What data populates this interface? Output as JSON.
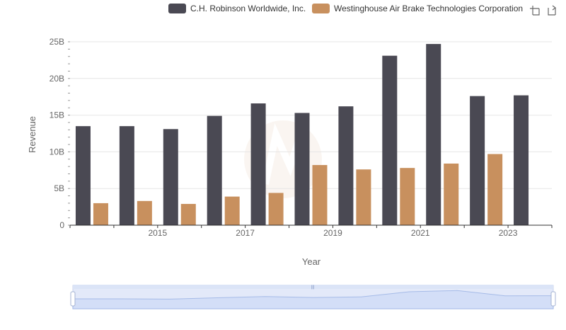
{
  "colors": {
    "series_a": "#4a4953",
    "series_b": "#c8905e",
    "grid": "#e6e6e6",
    "axis": "#333333",
    "zoom_fill": "#dbe4f7",
    "zoom_border": "#c9d3ea",
    "zoom_line": "#95aee0"
  },
  "toolbar": {
    "zoom_icon": "zoom-select-icon",
    "restore_icon": "restore-icon"
  },
  "chart_data": {
    "type": "bar",
    "title": "",
    "xlabel": "Year",
    "ylabel": "Revenue",
    "legend_position": "top-right",
    "grid": true,
    "x": [
      2014,
      2015,
      2016,
      2017,
      2018,
      2019,
      2020,
      2021,
      2022,
      2023,
      2024
    ],
    "x_tick_labels": [
      "2015",
      "2017",
      "2019",
      "2021",
      "2023"
    ],
    "x_tick_values": [
      2015,
      2017,
      2019,
      2021,
      2023
    ],
    "y_tick_labels": [
      "0",
      "5B",
      "10B",
      "15B",
      "20B",
      "25B"
    ],
    "y_tick_values": [
      0,
      5,
      10,
      15,
      20,
      25
    ],
    "ylim": [
      0,
      25
    ],
    "y_unit": "B",
    "series": [
      {
        "name": "C.H. Robinson Worldwide, Inc.",
        "values": [
          13.5,
          13.5,
          13.1,
          14.9,
          16.6,
          15.3,
          16.2,
          23.1,
          24.7,
          17.6,
          17.7
        ]
      },
      {
        "name": "Westinghouse Air Brake Technologies Corporation",
        "values": [
          3.0,
          3.3,
          2.9,
          3.9,
          4.4,
          8.2,
          7.6,
          7.8,
          8.4,
          9.7,
          null
        ]
      }
    ]
  }
}
